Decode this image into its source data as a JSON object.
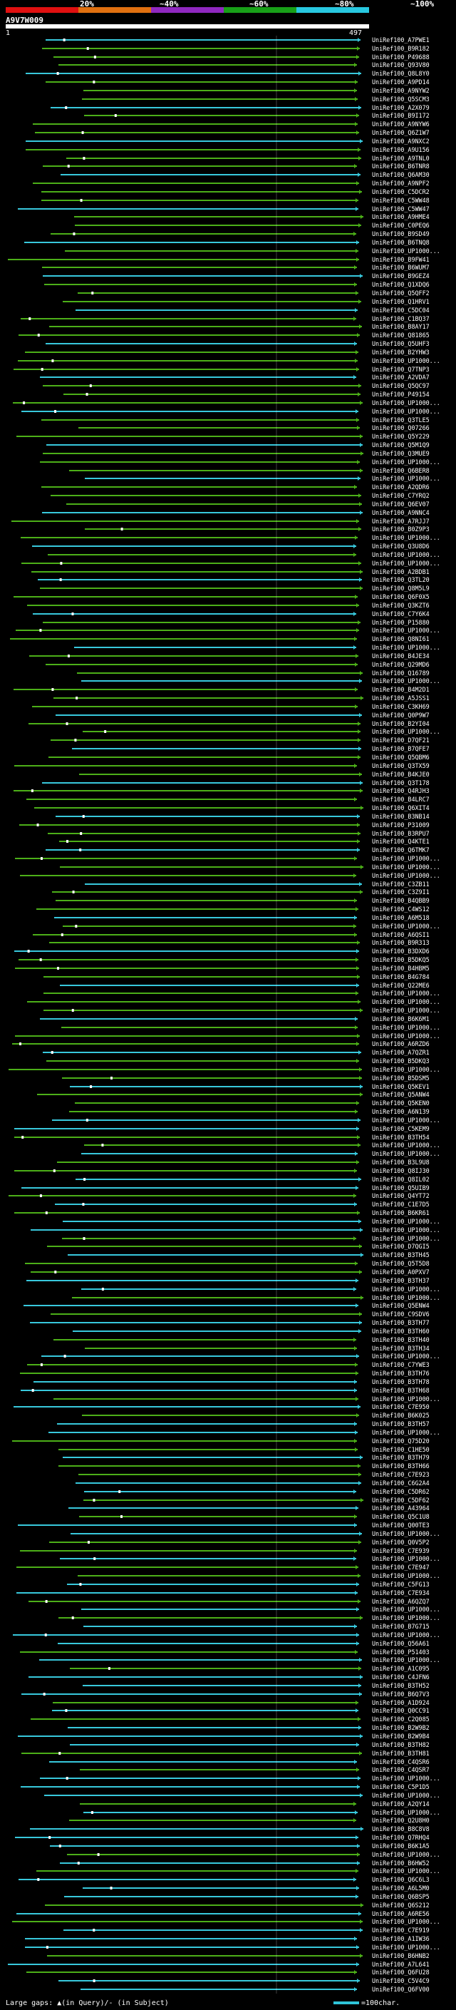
{
  "legend": {
    "ticks": [
      "20%",
      "~40%",
      "~60%",
      "~80%",
      "~100%"
    ],
    "colors": [
      "#e01010",
      "#e06010",
      "#a020c0",
      "#10a010",
      "#20c0e0"
    ]
  },
  "query": {
    "id": "A9V7W009",
    "start": "1",
    "end": "497"
  },
  "colors": {
    "green": "#4caf18",
    "cyan": "#38c8dc",
    "marker": "#ffffff"
  },
  "hits": [
    "UniRef100_A7PWE1",
    "UniRef100_B9R182",
    "UniRef100_P49688",
    "UniRef100_Q93V80",
    "UniRef100_Q8L8Y0",
    "UniRef100_A9PD14",
    "UniRef100_A9NYW2",
    "UniRef100_Q5SCM3",
    "UniRef100_A2X079",
    "UniRef100_B9I172",
    "UniRef100_A9NYW6",
    "UniRef100_Q6Z1W7",
    "UniRef100_A9NXC2",
    "UniRef100_A9U156",
    "UniRef100_A9TNL0",
    "UniRef100_B6TNR8",
    "UniRef100_Q6AM30",
    "UniRef100_A9NPF2",
    "UniRef100_C5DCR2",
    "UniRef100_C5WW48",
    "UniRef100_C5WW47",
    "UniRef100_A9HME4",
    "UniRef100_C0PEQ6",
    "UniRef100_B9SD49",
    "UniRef100_B6TNQ8",
    "UniRef100_UP1000...",
    "UniRef100_B9FW41",
    "UniRef100_B6WUM7",
    "UniRef100_B9GEZ4",
    "UniRef100_Q1XDQ6",
    "UniRef100_Q5QFF2",
    "UniRef100_Q1HRV1",
    "UniRef100_C5DC04",
    "UniRef100_C1BQ37",
    "UniRef100_B8AY17",
    "UniRef100_Q81865",
    "UniRef100_Q5UHF3",
    "UniRef100_B2YHW3",
    "UniRef100_UP1000...",
    "UniRef100_Q7TNP3",
    "UniRef100_A2VDA7",
    "UniRef100_Q5QC97",
    "UniRef100_P49154",
    "UniRef100_UP1000...",
    "UniRef100_UP1000...",
    "UniRef100_Q3TLE5",
    "UniRef100_Q07266",
    "UniRef100_Q5Y229",
    "UniRef100_Q5M1Q9",
    "UniRef100_Q3MUE9",
    "UniRef100_UP1000...",
    "UniRef100_Q6BER8",
    "UniRef100_UP1000...",
    "UniRef100_A2QDR6",
    "UniRef100_C7YRQ2",
    "UniRef100_Q6EV07",
    "UniRef100_A9NNC4",
    "UniRef100_A7RJJ7",
    "UniRef100_B0Z9P3",
    "UniRef100_UP1000...",
    "UniRef100_Q3U8D6",
    "UniRef100_UP1000...",
    "UniRef100_UP1000...",
    "UniRef100_A2BDB1",
    "UniRef100_Q3TL20",
    "UniRef100_Q8M5L9",
    "UniRef100_Q6F0X5",
    "UniRef100_Q3KZT6",
    "UniRef100_C7Y6K4",
    "UniRef100_P15880",
    "UniRef100_UP1000...",
    "UniRef100_Q8NI61",
    "UniRef100_UP1000...",
    "UniRef100_B4JE34",
    "UniRef100_Q29MD6",
    "UniRef100_Q16789",
    "UniRef100_UP1000...",
    "UniRef100_B4M2D1",
    "UniRef100_A5JSS1",
    "UniRef100_C3KH69",
    "UniRef100_Q0P9W7",
    "UniRef100_B2YI04",
    "UniRef100_UP1000...",
    "UniRef100_D7QF21",
    "UniRef100_B7QFE7",
    "UniRef100_Q5QBM6",
    "UniRef100_Q3TX59",
    "UniRef100_B4KJE0",
    "UniRef100_Q3T178",
    "UniRef100_Q4RJH3",
    "UniRef100_B4LRC7",
    "UniRef100_Q6XIT4",
    "UniRef100_B3NB14",
    "UniRef100_P31009",
    "UniRef100_B3RPU7",
    "UniRef100_Q4KTE1",
    "UniRef100_Q6TMK7",
    "UniRef100_UP1000...",
    "UniRef100_UP1000...",
    "UniRef100_UP1000...",
    "UniRef100_C3ZB11",
    "UniRef100_C3Z9I1",
    "UniRef100_B4QBB9",
    "UniRef100_C4WS12",
    "UniRef100_A6M518",
    "UniRef100_UP1000...",
    "UniRef100_A6QSI1",
    "UniRef100_B9R313",
    "UniRef100_B3DXD6",
    "UniRef100_B5DKQ5",
    "UniRef100_B4HBM5",
    "UniRef100_B4G784",
    "UniRef100_Q22ME6",
    "UniRef100_UP1000...",
    "UniRef100_UP1000...",
    "UniRef100_UP1000...",
    "UniRef100_B6K6M1",
    "UniRef100_UP1000...",
    "UniRef100_UP1000...",
    "UniRef100_A6RZD6",
    "UniRef100_A7QZR1",
    "UniRef100_B5DKQ3",
    "UniRef100_UP1000...",
    "UniRef100_B5DSM5",
    "UniRef100_Q5KEV1",
    "UniRef100_Q5ANW4",
    "UniRef100_Q5KEN0",
    "UniRef100_A6N139",
    "UniRef100_UP1000...",
    "UniRef100_C5KEM9",
    "UniRef100_B3TH54",
    "UniRef100_UP1000...",
    "UniRef100_UP1000...",
    "UniRef100_B3L9U8",
    "UniRef100_Q8IJ30",
    "UniRef100_Q8IL02",
    "UniRef100_Q5UIB9",
    "UniRef100_Q4YT72",
    "UniRef100_C1E7D5",
    "UniRef100_B6KR61",
    "UniRef100_UP1000...",
    "UniRef100_UP1000...",
    "UniRef100_UP1000...",
    "UniRef100_D7QGI5",
    "UniRef100_B3TH45",
    "UniRef100_Q5T5D8",
    "UniRef100_A0PXV7",
    "UniRef100_B3TH37",
    "UniRef100_UP1000...",
    "UniRef100_UP1000...",
    "UniRef100_Q5ENW4",
    "UniRef100_C9SDV6",
    "UniRef100_B3TH77",
    "UniRef100_B3TH60",
    "UniRef100_B3TH40",
    "UniRef100_B3TH34",
    "UniRef100_UP1000...",
    "UniRef100_C7YWE3",
    "UniRef100_B3TH76",
    "UniRef100_B3TH78",
    "UniRef100_B3TH68",
    "UniRef100_UP1000...",
    "UniRef100_C7E950",
    "UniRef100_B6K025",
    "UniRef100_B3TH57",
    "UniRef100_UP1000...",
    "UniRef100_Q75D20",
    "UniRef100_C1HE50",
    "UniRef100_B3TH79",
    "UniRef100_B3TH66",
    "UniRef100_C7E923",
    "UniRef100_C6G2A4",
    "UniRef100_C5DR62",
    "UniRef100_C5DF62",
    "UniRef100_A43964",
    "UniRef100_Q5C1U8",
    "UniRef100_Q00TE3",
    "UniRef100_UP1000...",
    "UniRef100_Q0V5P2",
    "UniRef100_C7E939",
    "UniRef100_UP1000...",
    "UniRef100_C7E947",
    "UniRef100_UP1000...",
    "UniRef100_C5FG13",
    "UniRef100_C7E934",
    "UniRef100_A6QZQ7",
    "UniRef100_UP1000...",
    "UniRef100_UP1000...",
    "UniRef100_B7G715",
    "UniRef100_UP1000...",
    "UniRef100_Q56A61",
    "UniRef100_P51403",
    "UniRef100_UP1000...",
    "UniRef100_A1C095",
    "UniRef100_C4JFN6",
    "UniRef100_B3TH52",
    "UniRef100_B6Q7V3",
    "UniRef100_A1D924",
    "UniRef100_Q0CC91",
    "UniRef100_C2Q085",
    "UniRef100_B2W9B2",
    "UniRef100_B2W9B4",
    "UniRef100_B3TH82",
    "UniRef100_B3TH81",
    "UniRef100_C4QSR6",
    "UniRef100_C4QSR7",
    "UniRef100_UP1000...",
    "UniRef100_C5P1D5",
    "UniRef100_UP1000...",
    "UniRef100_A2QY14",
    "UniRef100_UP1000...",
    "UniRef100_Q2U8H0",
    "UniRef100_B8C8V8",
    "UniRef100_Q7RHQ4",
    "UniRef100_B6K1A5",
    "UniRef100_UP1000...",
    "UniRef100_B6HW52",
    "UniRef100_UP1000...",
    "UniRef100_Q6C6L3",
    "UniRef100_A6L5M0",
    "UniRef100_Q6BSP5",
    "UniRef100_Q6S212",
    "UniRef100_A6RE56",
    "UniRef100_UP1000...",
    "UniRef100_C7E919",
    "UniRef100_A1IW36",
    "UniRef100_UP1000...",
    "UniRef100_B6HNB2",
    "UniRef100_A7L641",
    "UniRef100_Q6FU28",
    "UniRef100_C5V4C9",
    "UniRef100_Q6FV00"
  ],
  "footer": {
    "gaps": "Large gaps: ▲(in Query)/- (in Subject)",
    "scale": "=100char."
  }
}
